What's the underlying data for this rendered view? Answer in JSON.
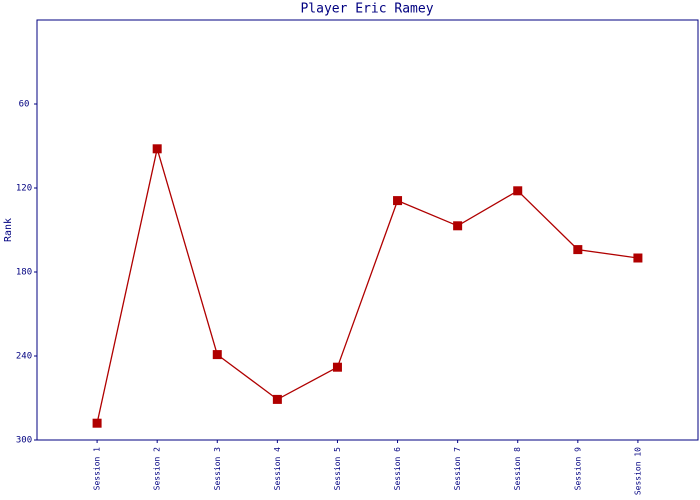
{
  "chart_data": {
    "type": "line",
    "title": "Player Eric Ramey",
    "y_label": "Rank",
    "categories": [
      "Session 1",
      "Session 2",
      "Session 3",
      "Session 4",
      "Session 5",
      "Session 6",
      "Session 7",
      "Session 8",
      "Session 9",
      "Session 10"
    ],
    "values": [
      288,
      92,
      239,
      271,
      248,
      129,
      147,
      122,
      164,
      170
    ],
    "color": "#b00000",
    "ylim": [
      0,
      300
    ],
    "y_inverted": true,
    "yticks": [
      60,
      120,
      180,
      240,
      300
    ],
    "grid": false
  }
}
